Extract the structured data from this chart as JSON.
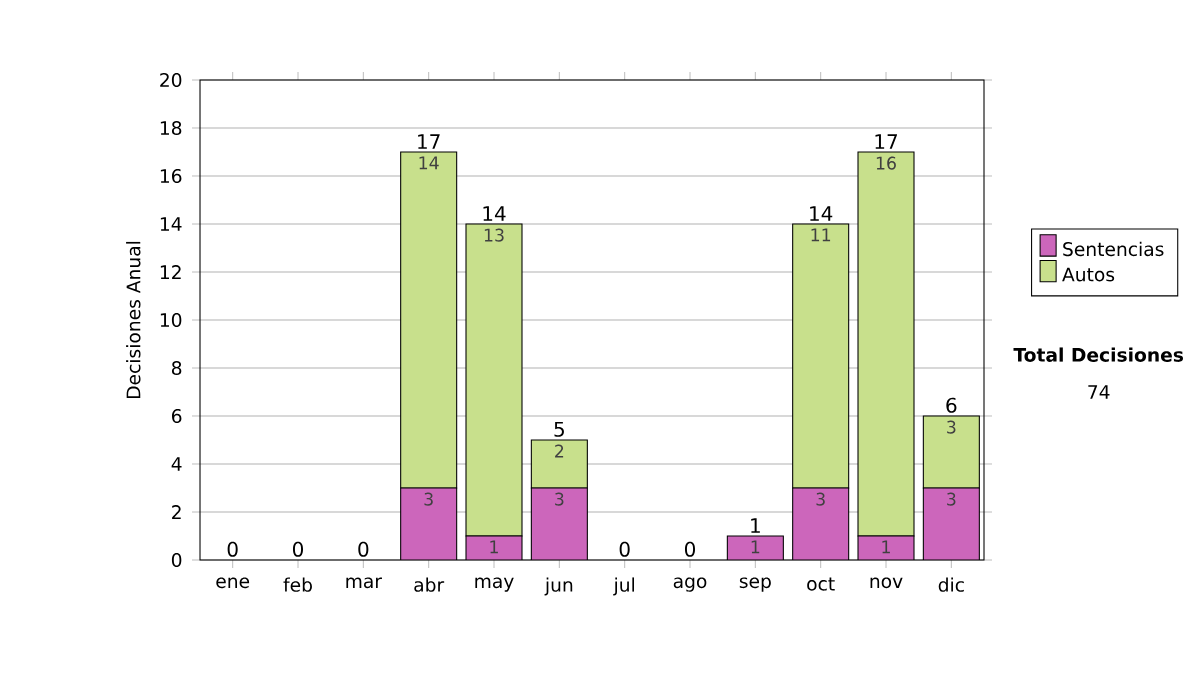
{
  "chart_data": {
    "type": "bar",
    "stacked": true,
    "ylabel": "Decisiones Anual",
    "categories": [
      "ene",
      "feb",
      "mar",
      "abr",
      "may",
      "jun",
      "jul",
      "ago",
      "sep",
      "oct",
      "nov",
      "dic"
    ],
    "series": [
      {
        "name": "Sentencias",
        "color": "#cc66bb",
        "values": [
          0,
          0,
          0,
          3,
          1,
          3,
          0,
          0,
          1,
          3,
          1,
          3
        ],
        "value_labels": [
          null,
          null,
          null,
          "3",
          "1",
          "3",
          null,
          null,
          "1",
          "3",
          "1",
          "3"
        ]
      },
      {
        "name": "Autos",
        "color": "#c8e08c",
        "values": [
          0,
          0,
          0,
          14,
          13,
          2,
          0,
          0,
          0,
          11,
          16,
          3
        ],
        "value_labels": [
          null,
          null,
          null,
          "14",
          "13",
          "2",
          null,
          null,
          null,
          "11",
          "16",
          "3"
        ]
      }
    ],
    "totals": [
      "0",
      "0",
      "0",
      "17",
      "14",
      "5",
      "0",
      "0",
      "1",
      "14",
      "17",
      "6"
    ],
    "ylim": [
      0,
      20
    ],
    "yticks": [
      0,
      2,
      4,
      6,
      8,
      10,
      12,
      14,
      16,
      18,
      20
    ],
    "grid": "y",
    "legend": "right",
    "annotations": [
      "Total Decisiones",
      "74"
    ]
  }
}
